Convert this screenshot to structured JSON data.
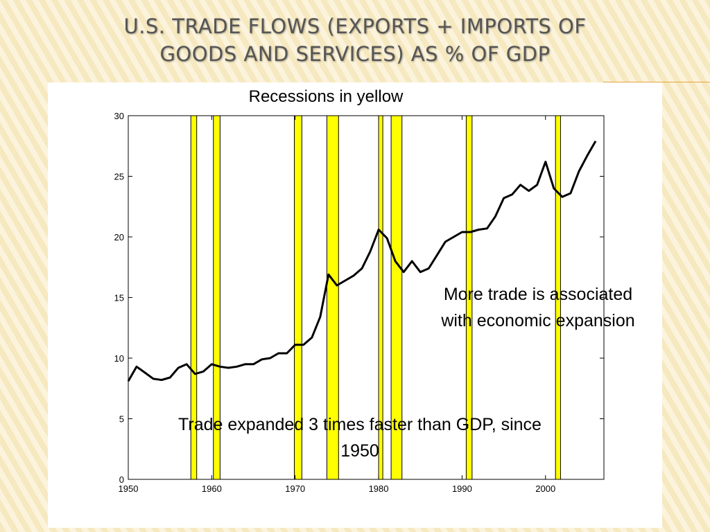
{
  "slide": {
    "title": "U.S. Trade Flows (Exports + Imports of Goods and Services) as % of GDP"
  },
  "colors": {
    "recession": "#ffff00",
    "line": "#000000",
    "accent": "#e8a33a"
  },
  "chart_data": {
    "type": "line",
    "title": "",
    "xlabel": "",
    "ylabel": "",
    "xlim": [
      1950,
      2007
    ],
    "ylim": [
      0,
      30
    ],
    "x_ticks": [
      1950,
      1960,
      1970,
      1980,
      1990,
      2000
    ],
    "y_ticks": [
      0,
      5,
      10,
      15,
      20,
      25,
      30
    ],
    "grid": false,
    "legend": "none",
    "annotations": [
      {
        "id": "recessions-note",
        "text": "Recessions in yellow"
      },
      {
        "id": "expansion-note",
        "lines": [
          "More trade is associated",
          "with economic expansion"
        ]
      },
      {
        "id": "trade-growth-note",
        "lines": [
          "Trade expanded 3 times faster than GDP,  since",
          "1950"
        ]
      }
    ],
    "recessions": [
      [
        1957.5,
        1958.2
      ],
      [
        1960.2,
        1961.0
      ],
      [
        1969.9,
        1970.8
      ],
      [
        1973.8,
        1975.2
      ],
      [
        1980.0,
        1980.5
      ],
      [
        1981.5,
        1982.8
      ],
      [
        1990.5,
        1991.2
      ],
      [
        2001.2,
        2001.8
      ]
    ],
    "series": [
      {
        "x": [
          1950,
          1951,
          1952,
          1953,
          1954,
          1955,
          1956,
          1957,
          1958,
          1959,
          1960,
          1961,
          1962,
          1963,
          1964,
          1965,
          1966,
          1967,
          1968,
          1969,
          1970,
          1971,
          1972,
          1973,
          1974,
          1975,
          1976,
          1977,
          1978,
          1979,
          1980,
          1981,
          1982,
          1983,
          1984,
          1985,
          1986,
          1987,
          1988,
          1989,
          1990,
          1991,
          1992,
          1993,
          1994,
          1995,
          1996,
          1997,
          1998,
          1999,
          2000,
          2001,
          2002,
          2003,
          2004,
          2005,
          2006
        ],
        "values": [
          8.1,
          9.3,
          8.8,
          8.3,
          8.2,
          8.4,
          9.2,
          9.5,
          8.7,
          8.9,
          9.5,
          9.3,
          9.2,
          9.3,
          9.5,
          9.5,
          9.9,
          10.0,
          10.4,
          10.4,
          11.1,
          11.1,
          11.7,
          13.4,
          16.9,
          16.0,
          16.4,
          16.8,
          17.4,
          18.8,
          20.6,
          19.9,
          18.0,
          17.1,
          18.0,
          17.1,
          17.4,
          18.5,
          19.6,
          20.0,
          20.4,
          20.4,
          20.6,
          20.7,
          21.7,
          23.2,
          23.5,
          24.3,
          23.8,
          24.3,
          26.2,
          24.0,
          23.3,
          23.6,
          25.4,
          26.7,
          27.9
        ]
      }
    ]
  }
}
